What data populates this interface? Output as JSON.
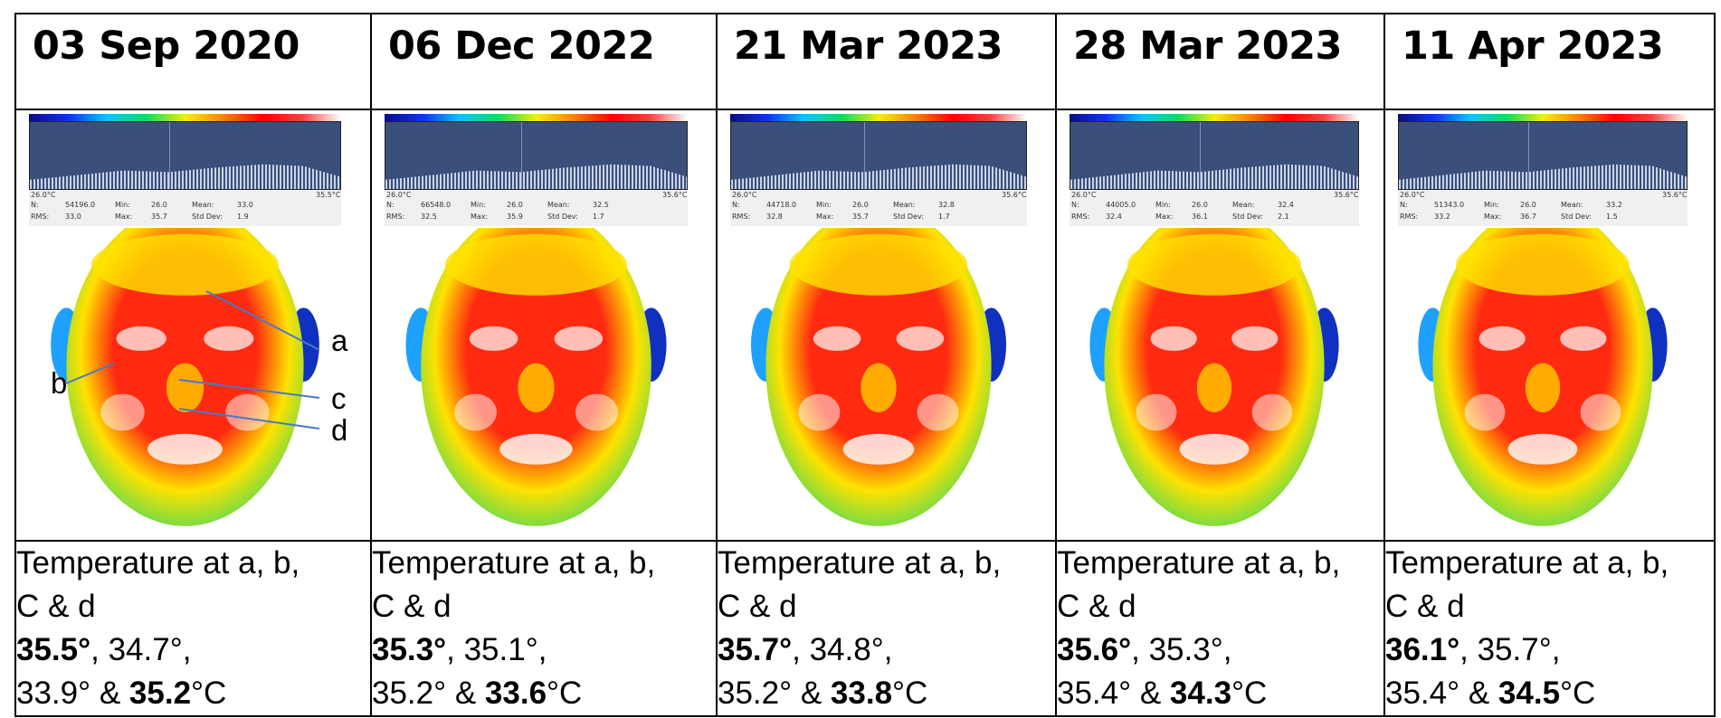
{
  "columns": [
    {
      "date": "03 Sep 2020",
      "label": "Temperature at a, b,",
      "label2": "C & d",
      "t_a": "35.5°",
      "t_b": ", 34.7°,",
      "t_c": "33.9° & ",
      "t_d": "35.2",
      "unit": "°C",
      "stats": {
        "lo": "26.0°C",
        "hi": "35.5°C",
        "n": "54196.0",
        "min": "26.0",
        "mean": "33.0",
        "rms": "33.0",
        "max": "35.7",
        "std": "1.9"
      }
    },
    {
      "date": "06 Dec 2022",
      "label": "Temperature at a, b,",
      "label2": "C & d",
      "t_a": "35.3°",
      "t_b": ", 35.1°,",
      "t_c": "35.2° & ",
      "t_d": "33.6",
      "unit": "°C",
      "stats": {
        "lo": "26.0°C",
        "hi": "35.6°C",
        "n": "66548.0",
        "min": "26.0",
        "mean": "32.5",
        "rms": "32.5",
        "max": "35.9",
        "std": "1.7"
      }
    },
    {
      "date": "21 Mar 2023",
      "label": "Temperature at a, b,",
      "label2": "C & d",
      "t_a": "35.7°",
      "t_b": ", 34.8°,",
      "t_c": "35.2° & ",
      "t_d": "33.8",
      "unit": "°C",
      "stats": {
        "lo": "26.0°C",
        "hi": "35.6°C",
        "n": "44718.0",
        "min": "26.0",
        "mean": "32.8",
        "rms": "32.8",
        "max": "35.7",
        "std": "1.7"
      }
    },
    {
      "date": "28 Mar 2023",
      "label": "Temperature at a, b,",
      "label2": "C & d",
      "t_a": "35.6°",
      "t_b": ", 35.3°,",
      "t_c": "35.4° & ",
      "t_d": "34.3",
      "unit": "°C",
      "stats": {
        "lo": "26.0°C",
        "hi": "35.6°C",
        "n": "44005.0",
        "min": "26.0",
        "mean": "32.4",
        "rms": "32.4",
        "max": "36.1",
        "std": "2.1"
      }
    },
    {
      "date": "11 Apr 2023",
      "label": "Temperature at a, b,",
      "label2": "C & d",
      "t_a": "36.1°",
      "t_b": ", 35.7°,",
      "t_c": "35.4° & ",
      "t_d": "34.5",
      "unit": "°C",
      "stats": {
        "lo": "26.0°C",
        "hi": "35.6°C",
        "n": "51343.0",
        "min": "26.0",
        "mean": "33.2",
        "rms": "33.2",
        "max": "36.7",
        "std": "1.5"
      }
    }
  ],
  "stat_labels": {
    "n": "N:",
    "min": "Min:",
    "mean": "Mean:",
    "rms": "RMS:",
    "max": "Max:",
    "std": "Std Dev:"
  },
  "markers": {
    "a": "a",
    "b": "b",
    "c": "c",
    "d": "d"
  },
  "colors": {
    "hot": "#ff2a10",
    "warm": "#ffe200",
    "mid": "#7fdc40",
    "cool": "#1ea0ff",
    "cold": "#1030c0",
    "white": "#ffffff",
    "histogram": "#3a4f7a"
  }
}
